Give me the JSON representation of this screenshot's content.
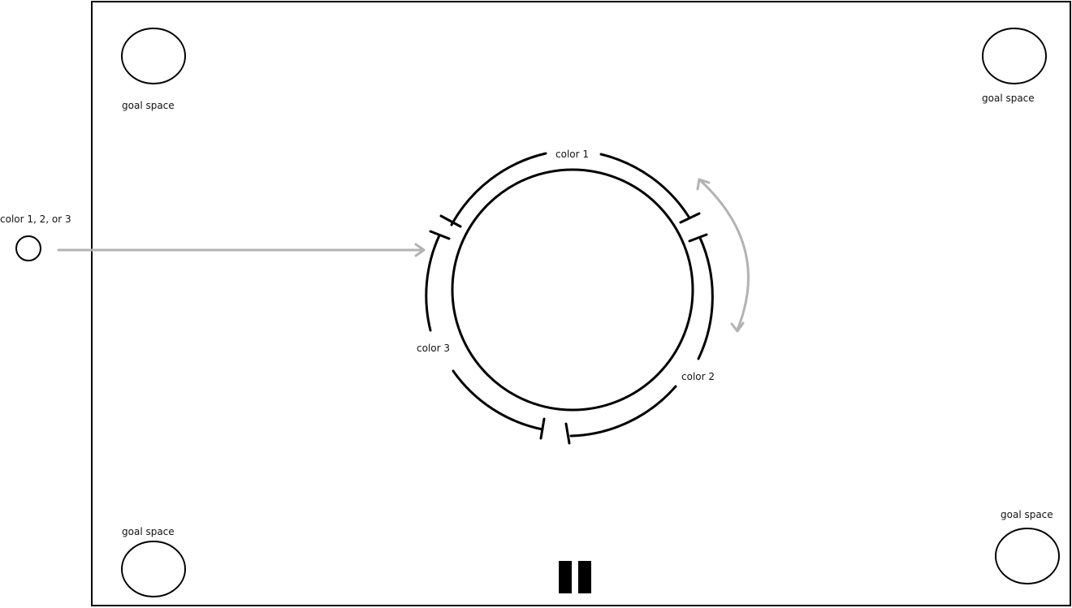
{
  "goal_spaces": [
    {
      "label": "goal space"
    },
    {
      "label": "goal space"
    },
    {
      "label": "goal space"
    },
    {
      "label": "goal space"
    }
  ],
  "ring_segments": [
    {
      "label": "color 1"
    },
    {
      "label": "color 2"
    },
    {
      "label": "color 3"
    }
  ],
  "incoming_ball": {
    "label": "color 1, 2, or 3"
  },
  "pause_icon": "pause-icon",
  "colors": {
    "stroke": "#000000",
    "guide_arrow": "#b3b3b3",
    "background": "#ffffff"
  }
}
